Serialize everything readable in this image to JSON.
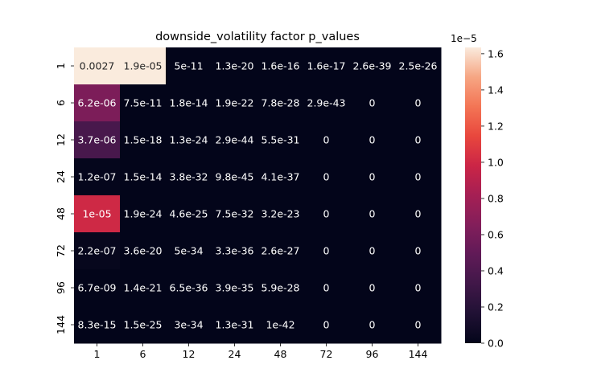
{
  "chart_data": {
    "type": "heatmap",
    "title": "downside_volatility factor p_values",
    "x_labels": [
      "1",
      "6",
      "12",
      "24",
      "48",
      "72",
      "96",
      "144"
    ],
    "y_labels": [
      "1",
      "6",
      "12",
      "24",
      "48",
      "72",
      "96",
      "144"
    ],
    "values": [
      [
        0.0027,
        1.9e-05,
        5e-11,
        1.3e-20,
        1.6e-16,
        1.6e-17,
        2.6e-39,
        2.5e-26
      ],
      [
        6.2e-06,
        7.5e-11,
        1.8e-14,
        1.9e-22,
        7.8e-28,
        2.9e-43,
        0,
        0
      ],
      [
        3.7e-06,
        1.5e-18,
        1.3e-24,
        2.9e-44,
        5.5e-31,
        0,
        0,
        0
      ],
      [
        1.2e-07,
        1.5e-14,
        3.8e-32,
        9.8e-45,
        4.1e-37,
        0,
        0,
        0
      ],
      [
        1e-05,
        1.9e-24,
        4.6e-25,
        7.5e-32,
        3.2e-23,
        0,
        0,
        0
      ],
      [
        2.2e-07,
        3.6e-20,
        5e-34,
        3.3e-36,
        2.6e-27,
        0,
        0,
        0
      ],
      [
        6.7e-09,
        1.4e-21,
        6.5e-36,
        3.9e-35,
        5.9e-28,
        0,
        0,
        0
      ],
      [
        8.3e-15,
        1.5e-25,
        3e-34,
        1.3e-31,
        1e-42,
        0,
        0,
        0
      ]
    ],
    "annotations": [
      [
        "0.0027",
        "1.9e-05",
        "5e-11",
        "1.3e-20",
        "1.6e-16",
        "1.6e-17",
        "2.6e-39",
        "2.5e-26"
      ],
      [
        "6.2e-06",
        "7.5e-11",
        "1.8e-14",
        "1.9e-22",
        "7.8e-28",
        "2.9e-43",
        "0",
        "0"
      ],
      [
        "3.7e-06",
        "1.5e-18",
        "1.3e-24",
        "2.9e-44",
        "5.5e-31",
        "0",
        "0",
        "0"
      ],
      [
        "1.2e-07",
        "1.5e-14",
        "3.8e-32",
        "9.8e-45",
        "4.1e-37",
        "0",
        "0",
        "0"
      ],
      [
        "1e-05",
        "1.9e-24",
        "4.6e-25",
        "7.5e-32",
        "3.2e-23",
        "0",
        "0",
        "0"
      ],
      [
        "2.2e-07",
        "3.6e-20",
        "5e-34",
        "3.3e-36",
        "2.6e-27",
        "0",
        "0",
        "0"
      ],
      [
        "6.7e-09",
        "1.4e-21",
        "6.5e-36",
        "3.9e-35",
        "5.9e-28",
        "0",
        "0",
        "0"
      ],
      [
        "8.3e-15",
        "1.5e-25",
        "3e-34",
        "1.3e-31",
        "1e-42",
        "0",
        "0",
        "0"
      ]
    ],
    "colorbar": {
      "vmin": 0,
      "vmax": 1.635e-05,
      "ticks": [
        0.0,
        0.2,
        0.4,
        0.6,
        0.8,
        1.0,
        1.2,
        1.4,
        1.6
      ],
      "tick_labels": [
        "0.0",
        "0.2",
        "0.4",
        "0.6",
        "0.8",
        "1.0",
        "1.2",
        "1.4",
        "1.6"
      ],
      "offset_label": "1e−5",
      "scale": 1e-05
    },
    "colormap": "rocket",
    "grid": false,
    "legend": "colorbar-right"
  }
}
